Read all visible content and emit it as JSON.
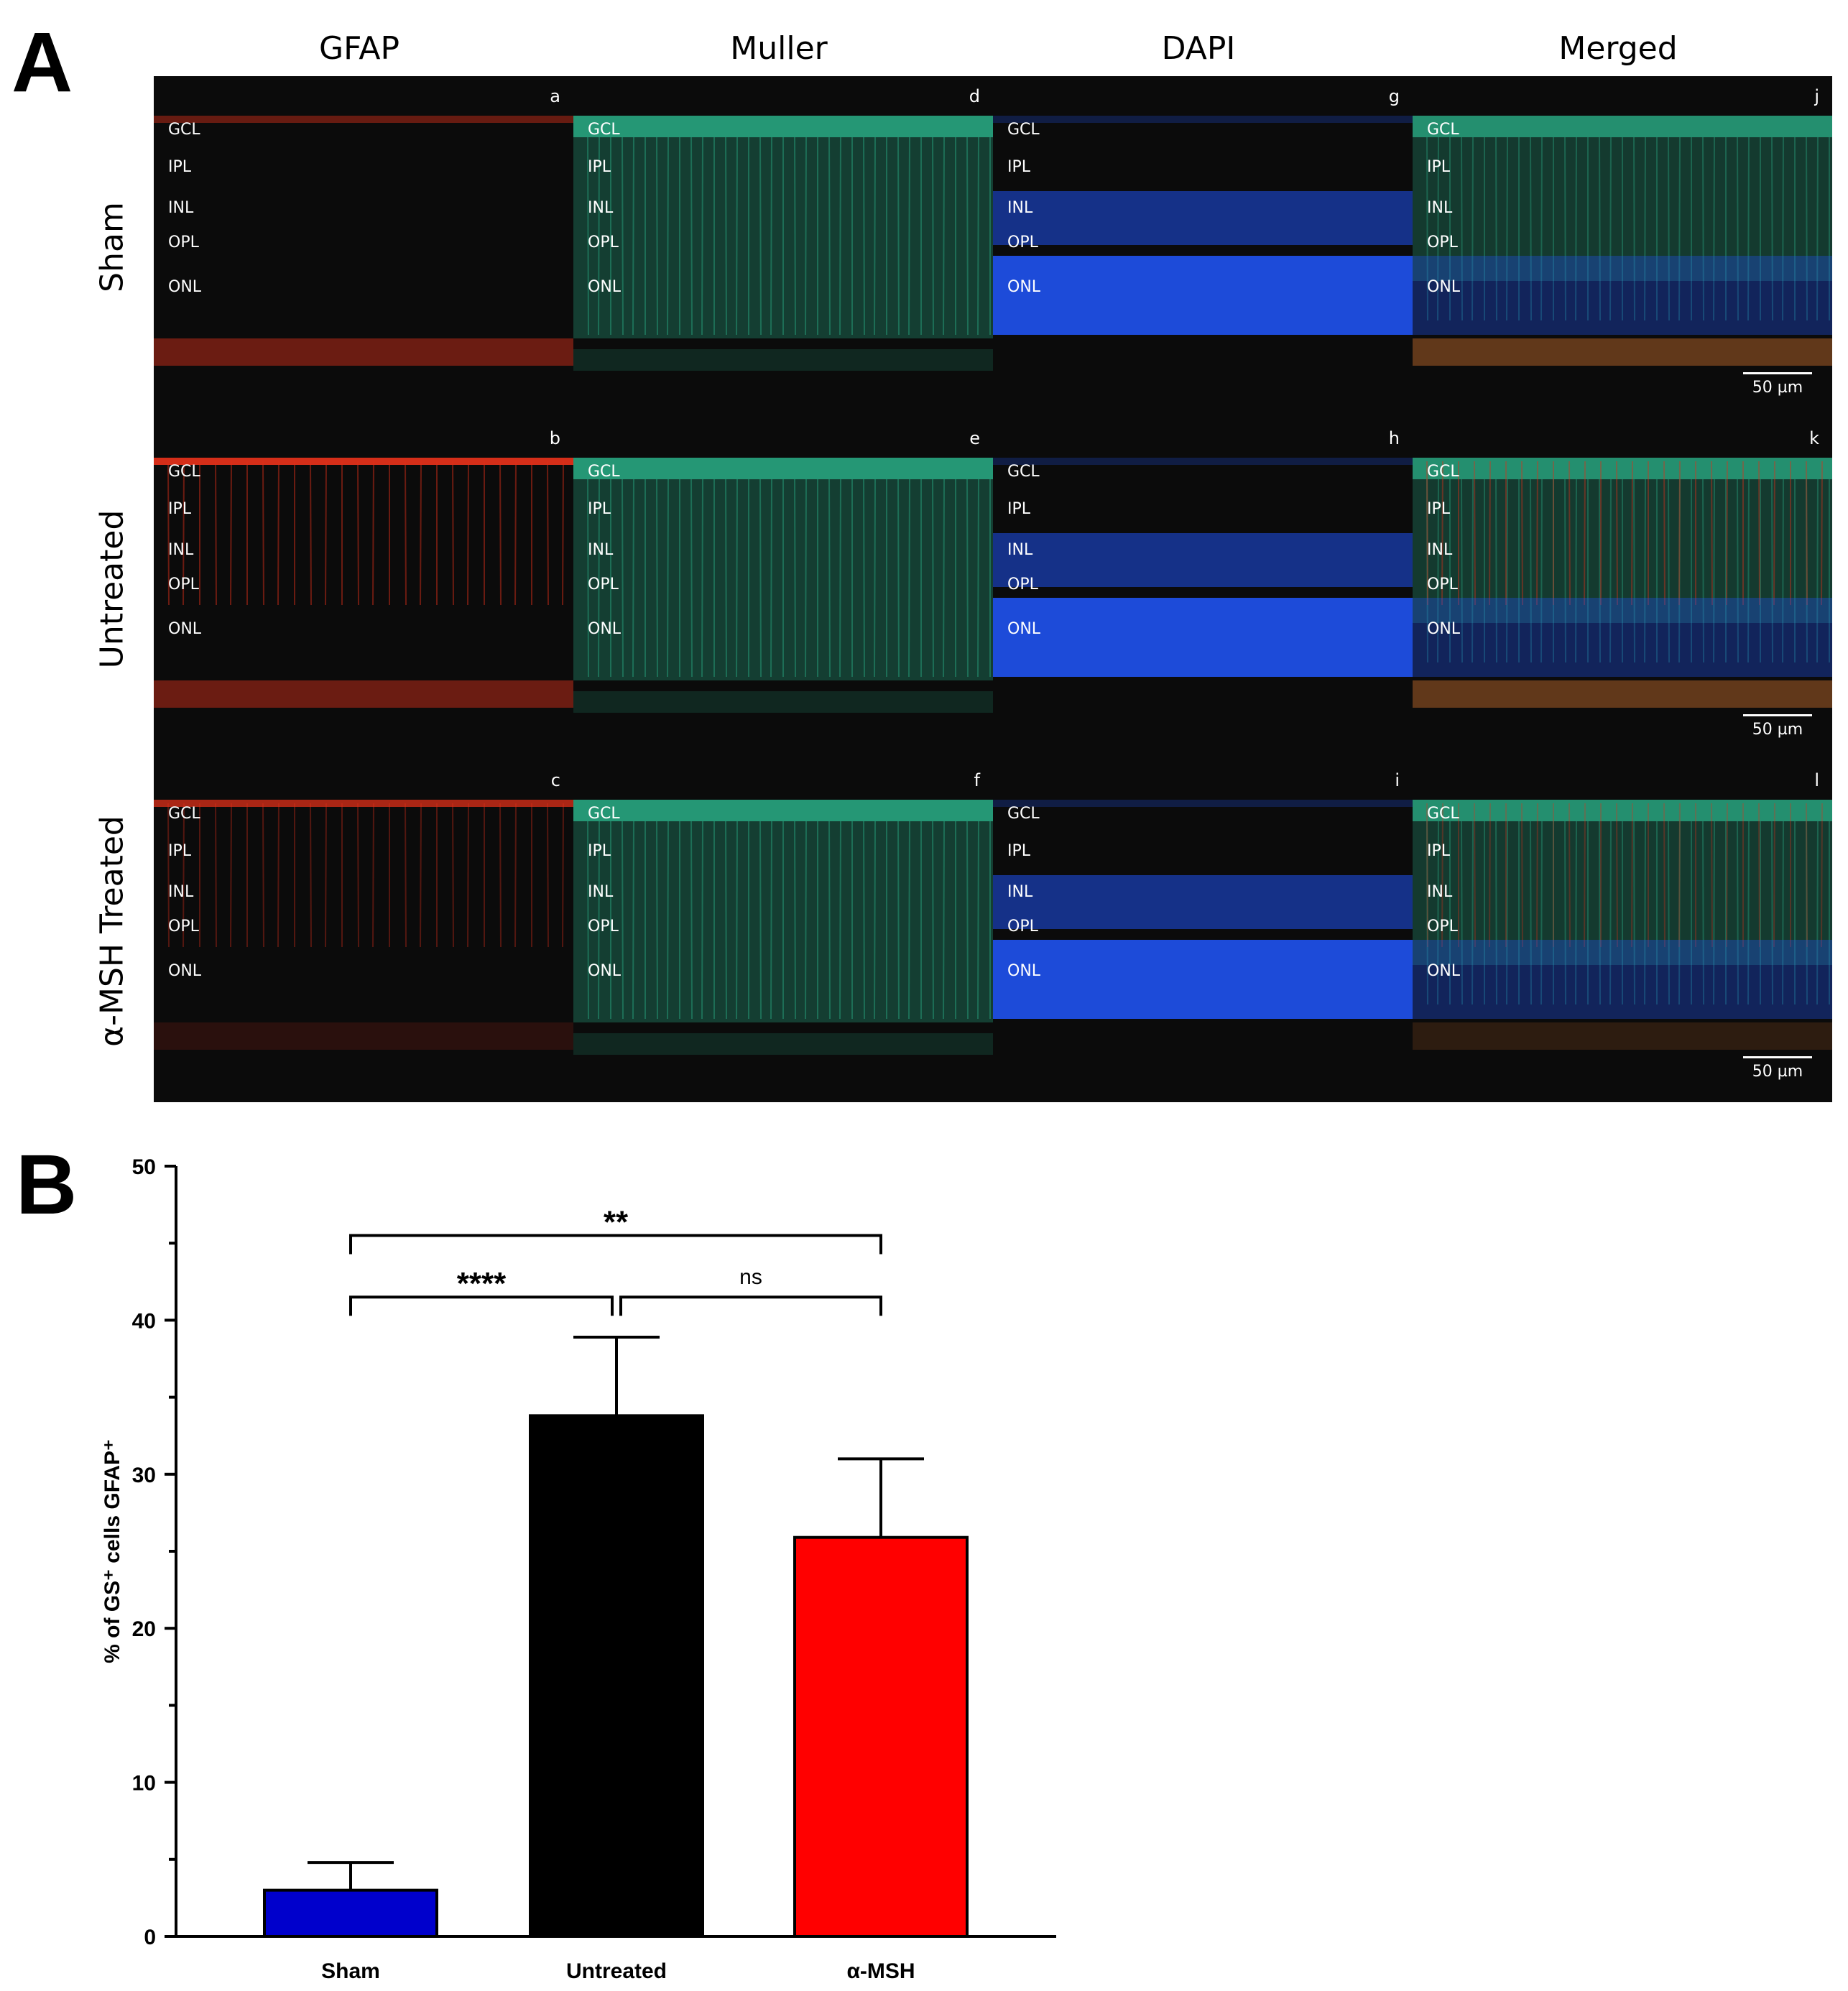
{
  "panels": {
    "A": "A",
    "B": "B"
  },
  "column_headers": [
    "GFAP",
    "Muller",
    "DAPI",
    "Merged"
  ],
  "row_labels": [
    "Sham",
    "Untreated",
    "α-MSH Treated"
  ],
  "micrographs": {
    "panel_letters": [
      [
        "a",
        "d",
        "g",
        "j"
      ],
      [
        "b",
        "e",
        "h",
        "k"
      ],
      [
        "c",
        "f",
        "i",
        "l"
      ]
    ],
    "layer_labels": [
      "GCL",
      "IPL",
      "INL",
      "OPL",
      "ONL"
    ],
    "scale_bar": "50 µm",
    "channel_colors": {
      "GFAP": "#e0301a",
      "Muller": "#2fc79a",
      "DAPI": "#1f52f0",
      "background": "#0b0b0b"
    }
  },
  "chart_data": {
    "type": "bar",
    "categories": [
      "Sham",
      "Untreated",
      "α-MSH"
    ],
    "values": [
      3.0,
      33.8,
      25.9
    ],
    "errors": [
      1.8,
      5.1,
      5.1
    ],
    "colors": [
      "#0000cc",
      "#000000",
      "#ff0000"
    ],
    "ylabel": "% of GS⁺ cells GFAP⁺",
    "ylim": [
      0,
      50
    ],
    "yticks": [
      0,
      10,
      20,
      30,
      40,
      50
    ],
    "minor_step": 5,
    "significance": [
      {
        "from": 0,
        "to": 1,
        "label": "****"
      },
      {
        "from": 1,
        "to": 2,
        "label": "ns"
      },
      {
        "from": 0,
        "to": 2,
        "label": "**"
      }
    ]
  }
}
